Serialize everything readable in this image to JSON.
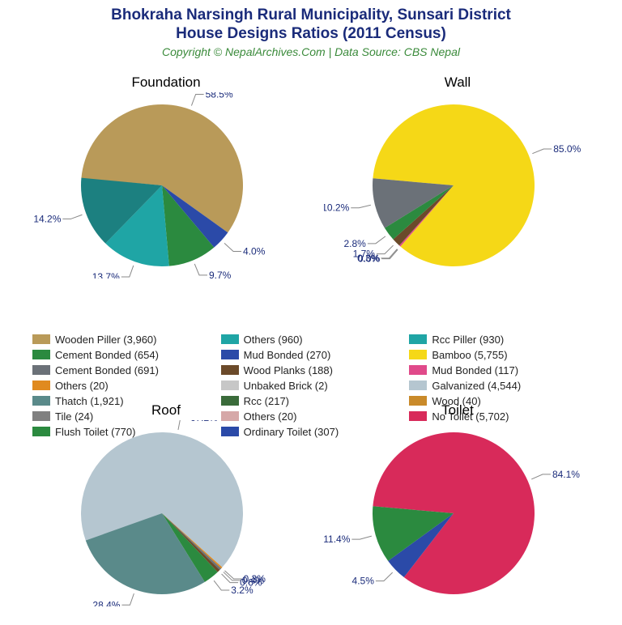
{
  "title_line1": "Bhokraha Narsingh Rural Municipality, Sunsari District",
  "title_line2": "House Designs Ratios (2011 Census)",
  "subtitle": "Copyright © NepalArchives.Com | Data Source: CBS Nepal",
  "title_color": "#1a2b7a",
  "subtitle_color": "#3a8a3a",
  "title_fontsize": 19,
  "subtitle_fontsize": 14,
  "chart_title_fontsize": 17,
  "label_color": "#1a2b7a",
  "label_fontsize": 12,
  "background": "#ffffff",
  "pie_radius": 100,
  "charts": {
    "foundation": {
      "title": "Foundation",
      "slices": [
        {
          "pct": 58.5,
          "color": "#b99a59",
          "label": "58.5%"
        },
        {
          "pct": 4.0,
          "color": "#2b4aa8",
          "label": "4.0%"
        },
        {
          "pct": 9.7,
          "color": "#2b8a3f",
          "label": "9.7%"
        },
        {
          "pct": 13.7,
          "color": "#1fa5a5",
          "label": "13.7%"
        },
        {
          "pct": 14.2,
          "color": "#1c8080",
          "label": "14.2%"
        }
      ]
    },
    "wall": {
      "title": "Wall",
      "slices": [
        {
          "pct": 85.0,
          "color": "#f5d817",
          "label": "85.0%"
        },
        {
          "pct": 0.0,
          "color": "#1fa5a5",
          "label": "0.0%"
        },
        {
          "pct": 0.3,
          "color": "#e04a8a",
          "label": "0.3%"
        },
        {
          "pct": 1.7,
          "color": "#6b4a2a",
          "label": "1.7%"
        },
        {
          "pct": 2.8,
          "color": "#2b8a3f",
          "label": "2.8%"
        },
        {
          "pct": 10.2,
          "color": "#6b7178",
          "label": "10.2%"
        }
      ]
    },
    "roof": {
      "title": "Roof",
      "slices": [
        {
          "pct": 67.2,
          "color": "#b5c6d0",
          "label": "67.2%"
        },
        {
          "pct": 0.3,
          "color": "#e08a1f",
          "label": "0.3%"
        },
        {
          "pct": 0.4,
          "color": "#6b7178",
          "label": "0.4%"
        },
        {
          "pct": 0.6,
          "color": "#6b4a2a",
          "label": "0.6%"
        },
        {
          "pct": 3.2,
          "color": "#2b8a3f",
          "label": "3.2%"
        },
        {
          "pct": 28.4,
          "color": "#5a8a8a",
          "label": "28.4%"
        }
      ]
    },
    "toilet": {
      "title": "Toilet",
      "slices": [
        {
          "pct": 84.1,
          "color": "#d82a5a",
          "label": "84.1%"
        },
        {
          "pct": 4.5,
          "color": "#2b4aa8",
          "label": "4.5%"
        },
        {
          "pct": 11.4,
          "color": "#2b8a3f",
          "label": "11.4%"
        }
      ]
    }
  },
  "legend": [
    {
      "color": "#b99a59",
      "text": "Wooden Piller (3,960)"
    },
    {
      "color": "#2b8a3f",
      "text": "Cement Bonded (654)"
    },
    {
      "color": "#6b7178",
      "text": "Cement Bonded (691)"
    },
    {
      "color": "#e08a1f",
      "text": "Others (20)"
    },
    {
      "color": "#5a8a8a",
      "text": "Thatch (1,921)"
    },
    {
      "color": "#808080",
      "text": "Tile (24)"
    },
    {
      "color": "#2b8a3f",
      "text": "Flush Toilet (770)"
    },
    {
      "color": "#1fa5a5",
      "text": "Others (960)"
    },
    {
      "color": "#2b4aa8",
      "text": "Mud Bonded (270)"
    },
    {
      "color": "#6b4a2a",
      "text": "Wood Planks (188)"
    },
    {
      "color": "#c7c7c7",
      "text": "Unbaked Brick (2)"
    },
    {
      "color": "#3a6b3a",
      "text": "Rcc (217)"
    },
    {
      "color": "#d6a8a8",
      "text": "Others (20)"
    },
    {
      "color": "#2b4aa8",
      "text": "Ordinary Toilet (307)"
    },
    {
      "color": "#1fa5a5",
      "text": "Rcc Piller (930)"
    },
    {
      "color": "#f5d817",
      "text": "Bamboo (5,755)"
    },
    {
      "color": "#e04a8a",
      "text": "Mud Bonded (117)"
    },
    {
      "color": "#b5c6d0",
      "text": "Galvanized (4,544)"
    },
    {
      "color": "#c98a2a",
      "text": "Wood (40)"
    },
    {
      "color": "#d82a5a",
      "text": "No Toilet (5,702)"
    }
  ]
}
